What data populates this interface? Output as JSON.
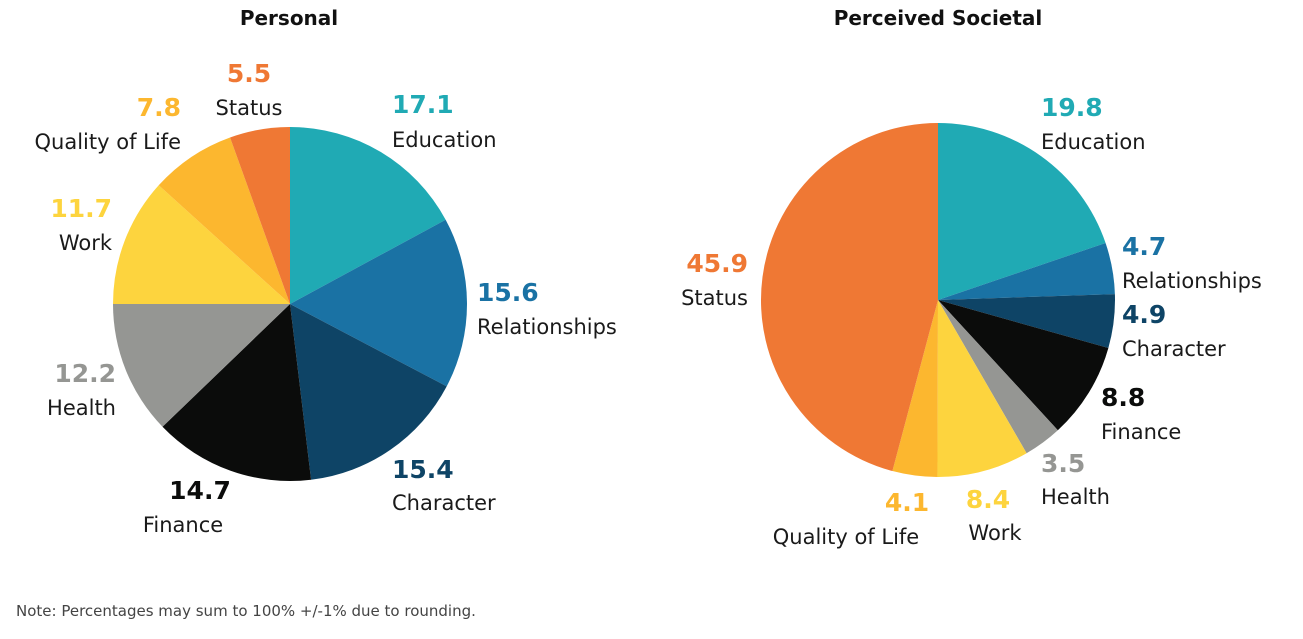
{
  "note": "Note: Percentages may sum to 100% +/-1% due to rounding.",
  "colors": {
    "Education": "#20aab4",
    "Relationships": "#1a72a4",
    "Character": "#0e4466",
    "Finance": "#0b0c0b",
    "Health": "#959693",
    "Work": "#fdd43e",
    "Quality of Life": "#fcb72f",
    "Status": "#ef7834"
  },
  "chart_data": [
    {
      "type": "pie",
      "title": "Personal",
      "start": "12 o'clock",
      "direction": "clockwise",
      "labels": [
        "Education",
        "Relationships",
        "Character",
        "Finance",
        "Health",
        "Work",
        "Quality of Life",
        "Status"
      ],
      "values": [
        17.1,
        15.6,
        15.4,
        14.7,
        12.2,
        11.7,
        7.8,
        5.5
      ],
      "value_labels": [
        "17.1",
        "15.6",
        "15.4",
        "14.7",
        "12.2",
        "11.7",
        "7.8",
        "5.5"
      ]
    },
    {
      "type": "pie",
      "title": "Perceived Societal",
      "start": "12 o'clock",
      "direction": "clockwise",
      "labels": [
        "Education",
        "Relationships",
        "Character",
        "Finance",
        "Health",
        "Work",
        "Quality of Life",
        "Status"
      ],
      "values": [
        19.8,
        4.7,
        4.9,
        8.8,
        3.5,
        8.4,
        4.1,
        45.9
      ],
      "value_labels": [
        "19.8",
        "4.7",
        "4.9",
        "8.8",
        "3.5",
        "8.4",
        "4.1",
        "45.9"
      ]
    }
  ]
}
